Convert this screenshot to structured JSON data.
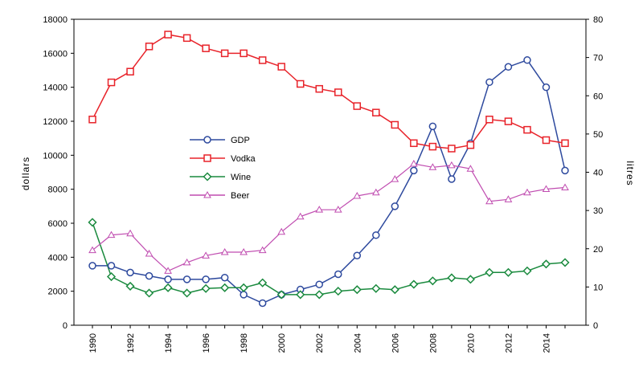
{
  "chart_data": {
    "type": "line",
    "title": "",
    "xlabel": "",
    "ylabel_left": "dollars",
    "ylabel_right": "litres",
    "x": [
      1990,
      1991,
      1992,
      1993,
      1994,
      1995,
      1996,
      1997,
      1998,
      1999,
      2000,
      2001,
      2002,
      2003,
      2004,
      2005,
      2006,
      2007,
      2008,
      2009,
      2010,
      2011,
      2012,
      2013,
      2014,
      2015
    ],
    "x_ticks": [
      "1990",
      "1992",
      "1994",
      "1996",
      "1998",
      "2000",
      "2002",
      "2004",
      "2006",
      "2008",
      "2010",
      "2012",
      "2014"
    ],
    "ylim_left": [
      0,
      18000
    ],
    "yticks_left": [
      "0",
      "2000",
      "4000",
      "6000",
      "8000",
      "10000",
      "12000",
      "14000",
      "16000",
      "18000"
    ],
    "ylim_right": [
      0,
      80
    ],
    "yticks_right": [
      "0",
      "10",
      "20",
      "30",
      "40",
      "50",
      "60",
      "70",
      "80"
    ],
    "grid": false,
    "legend_position": "center-left",
    "series": [
      {
        "name": "GDP",
        "axis": "left",
        "color": "#2e4a9e",
        "marker": "circle",
        "values": [
          3500,
          3500,
          3100,
          2900,
          2700,
          2700,
          2700,
          2800,
          1800,
          1300,
          1800,
          2100,
          2400,
          3000,
          4100,
          5300,
          7000,
          9100,
          11700,
          8600,
          10700,
          14300,
          15200,
          15600,
          14000,
          9100
        ]
      },
      {
        "name": "Vodka",
        "axis": "right",
        "color": "#e8232a",
        "marker": "square",
        "values": [
          53.8,
          63.5,
          66.3,
          72.9,
          76.0,
          75.1,
          72.4,
          71.1,
          71.1,
          69.3,
          67.6,
          63.1,
          61.8,
          60.9,
          57.3,
          55.6,
          52.4,
          47.6,
          46.7,
          46.2,
          47.1,
          53.8,
          53.3,
          51.1,
          48.4,
          47.6
        ]
      },
      {
        "name": "Wine",
        "axis": "right",
        "color": "#1a8a3e",
        "marker": "diamond",
        "values": [
          26.9,
          12.7,
          10.2,
          8.4,
          9.8,
          8.4,
          9.6,
          9.8,
          9.8,
          11.1,
          8.0,
          8.0,
          8.0,
          8.9,
          9.3,
          9.6,
          9.3,
          10.7,
          11.6,
          12.4,
          12.0,
          13.8,
          13.8,
          14.2,
          16.0,
          16.4
        ]
      },
      {
        "name": "Beer",
        "axis": "right",
        "color": "#c04cb0",
        "marker": "triangle",
        "values": [
          19.6,
          23.6,
          24.0,
          18.7,
          14.2,
          16.4,
          18.2,
          19.1,
          19.1,
          19.6,
          24.4,
          28.4,
          30.2,
          30.2,
          33.8,
          34.7,
          38.2,
          42.2,
          41.3,
          41.8,
          40.9,
          32.4,
          32.9,
          34.7,
          35.6,
          36.0
        ]
      }
    ]
  }
}
